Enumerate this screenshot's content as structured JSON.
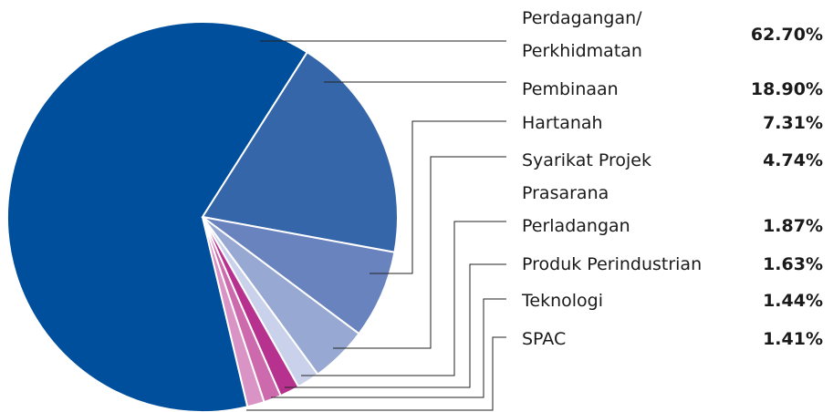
{
  "chart_data": {
    "type": "pie",
    "categories": [
      "Perdagangan/ Perkhidmatan",
      "Pembinaan",
      "Hartanah",
      "Syarikat Projek Prasarana",
      "Perladangan",
      "Produk Perindustrian",
      "Teknologi",
      "SPAC"
    ],
    "values": [
      62.7,
      18.9,
      7.31,
      4.74,
      1.87,
      1.63,
      1.44,
      1.41
    ],
    "value_labels": [
      "62.70%",
      "18.90%",
      "7.31%",
      "4.74%",
      "1.87%",
      "1.63%",
      "1.44%",
      "1.41%"
    ],
    "colors": [
      "#004f9c",
      "#3566a9",
      "#6983bf",
      "#97a8d3",
      "#c9d2ea",
      "#b7318f",
      "#cd6aae",
      "#d993c4"
    ]
  }
}
